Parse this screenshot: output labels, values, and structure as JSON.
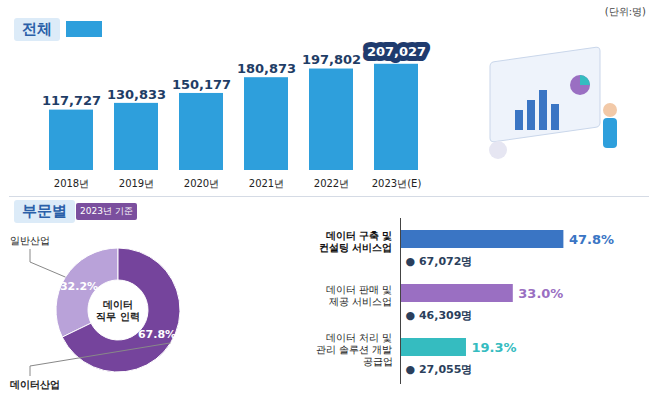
{
  "chart_data": [
    {
      "type": "bar",
      "title": "전체",
      "subtitle": "(단위:명)",
      "categories": [
        "2018년",
        "2019년",
        "2020년",
        "2021년",
        "2022년",
        "2023년(E)"
      ],
      "values": [
        117727,
        130833,
        150177,
        180873,
        197802,
        207027
      ],
      "value_labels": [
        "117,727",
        "130,833",
        "150,177",
        "180,873",
        "197,802",
        "207,027"
      ],
      "colors": [
        "#2e9fdc",
        "#2e9fdc",
        "#2e9fdc",
        "#2e9fdc",
        "#2e9fdc",
        "#2e9fdc"
      ],
      "ylim": [
        0,
        230000
      ],
      "data_labels": true,
      "tick_labels": "x",
      "grid": false
    },
    {
      "type": "pie",
      "title": "부문별",
      "subtitle": "2023년 기준",
      "center_label": "데이터 직무 인력",
      "categories": [
        "일반산업",
        "데이터산업"
      ],
      "values": [
        32.2,
        67.8
      ],
      "value_labels": [
        "32.2%",
        "67.8%"
      ],
      "colors": [
        "#b9a2d9",
        "#75449c"
      ],
      "data_labels": true
    },
    {
      "type": "bar",
      "orientation": "horizontal",
      "categories": [
        "데이터 구축 및 컨설팅 서비스업",
        "데이터 판매 및 제공 서비스업",
        "데이터 처리 및 관리 솔루션 개발 공급업"
      ],
      "values": [
        47.8,
        33.0,
        19.3
      ],
      "value_labels": [
        "47.8%",
        "33.0%",
        "19.3%"
      ],
      "counts": [
        67072,
        46309,
        27055
      ],
      "count_labels": [
        "67,072명",
        "46,309명",
        "27,055명"
      ],
      "colors": [
        "#3a75c4",
        "#9a6fc2",
        "#35bcc0"
      ],
      "xlim": [
        0,
        55
      ],
      "data_labels": true,
      "tick_labels": false
    }
  ]
}
